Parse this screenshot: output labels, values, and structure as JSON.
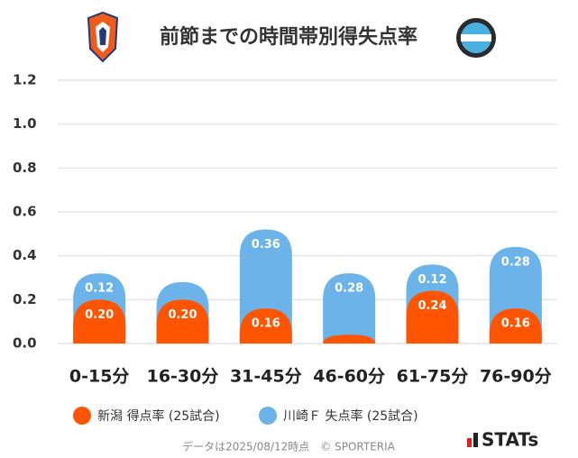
{
  "brand": "STATs",
  "chart_data": {
    "type": "stacked_bar",
    "title": "前節までの時間帯別得失点率",
    "categories": [
      "0-15分",
      "16-30分",
      "31-45分",
      "46-60分",
      "61-75分",
      "76-90分"
    ],
    "series": [
      {
        "name": "新潟 得点率 (25試合)",
        "color": "#ff5500",
        "values": [
          0.2,
          0.2,
          0.16,
          0.04,
          0.24,
          0.16
        ],
        "value_labels": [
          "0.20",
          "0.20",
          "0.16",
          null,
          "0.24",
          "0.16"
        ]
      },
      {
        "name": "川崎Ｆ 失点率 (25試合)",
        "color": "#6bb3e8",
        "values": [
          0.12,
          0.08,
          0.36,
          0.28,
          0.12,
          0.28
        ],
        "value_labels": [
          "0.12",
          null,
          "0.36",
          "0.28",
          "0.12",
          "0.28"
        ]
      }
    ],
    "ylim": [
      0,
      1.2
    ],
    "yticks": [
      {
        "value": 0,
        "label": "0.0"
      },
      0.2,
      0.4,
      0.6,
      0.8,
      {
        "value": 1,
        "label": "1.0"
      },
      1.2
    ],
    "grid": true,
    "footnote": "データは2025/08/12時点　© SPORTERIA"
  }
}
